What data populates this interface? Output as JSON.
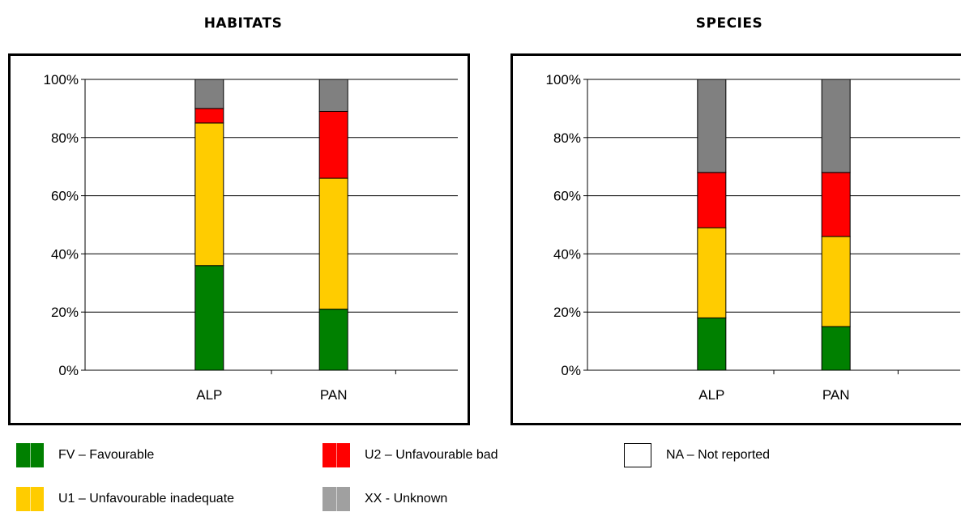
{
  "chart_data": [
    {
      "type": "bar",
      "stacked": true,
      "title": "HABITATS",
      "categories": [
        "ALP",
        "PAN"
      ],
      "ylim": [
        0,
        100
      ],
      "yticks": [
        "0%",
        "20%",
        "40%",
        "60%",
        "80%",
        "100%"
      ],
      "grid": true,
      "series": [
        {
          "name": "FV – Favourable",
          "color": "#008000",
          "values": [
            36,
            21
          ]
        },
        {
          "name": "U1 – Unfavourable inadequate",
          "color": "#ffcc00",
          "values": [
            49,
            45
          ]
        },
        {
          "name": "U2 – Unfavourable bad",
          "color": "#ff0000",
          "values": [
            5,
            23
          ]
        },
        {
          "name": "XX - Unknown",
          "color": "#808080",
          "values": [
            10,
            11
          ]
        }
      ]
    },
    {
      "type": "bar",
      "stacked": true,
      "title": "SPECIES",
      "categories": [
        "ALP",
        "PAN"
      ],
      "ylim": [
        0,
        100
      ],
      "yticks": [
        "0%",
        "20%",
        "40%",
        "60%",
        "80%",
        "100%"
      ],
      "grid": true,
      "series": [
        {
          "name": "FV – Favourable",
          "color": "#008000",
          "values": [
            18,
            15
          ]
        },
        {
          "name": "U1 – Unfavourable inadequate",
          "color": "#ffcc00",
          "values": [
            31,
            31
          ]
        },
        {
          "name": "U2 – Unfavourable bad",
          "color": "#ff0000",
          "values": [
            19,
            22
          ]
        },
        {
          "name": "XX - Unknown",
          "color": "#808080",
          "values": [
            32,
            32
          ]
        }
      ]
    }
  ],
  "legend": {
    "items": [
      {
        "label": "FV – Favourable",
        "color": "#008000"
      },
      {
        "label": "U2 – Unfavourable bad",
        "color": "#ff0000"
      },
      {
        "label": "NA – Not reported",
        "color": "#ffffff"
      },
      {
        "label": "U1 – Unfavourable inadequate",
        "color": "#ffcc00"
      },
      {
        "label": "XX - Unknown",
        "color": "#a0a0a0"
      }
    ]
  }
}
